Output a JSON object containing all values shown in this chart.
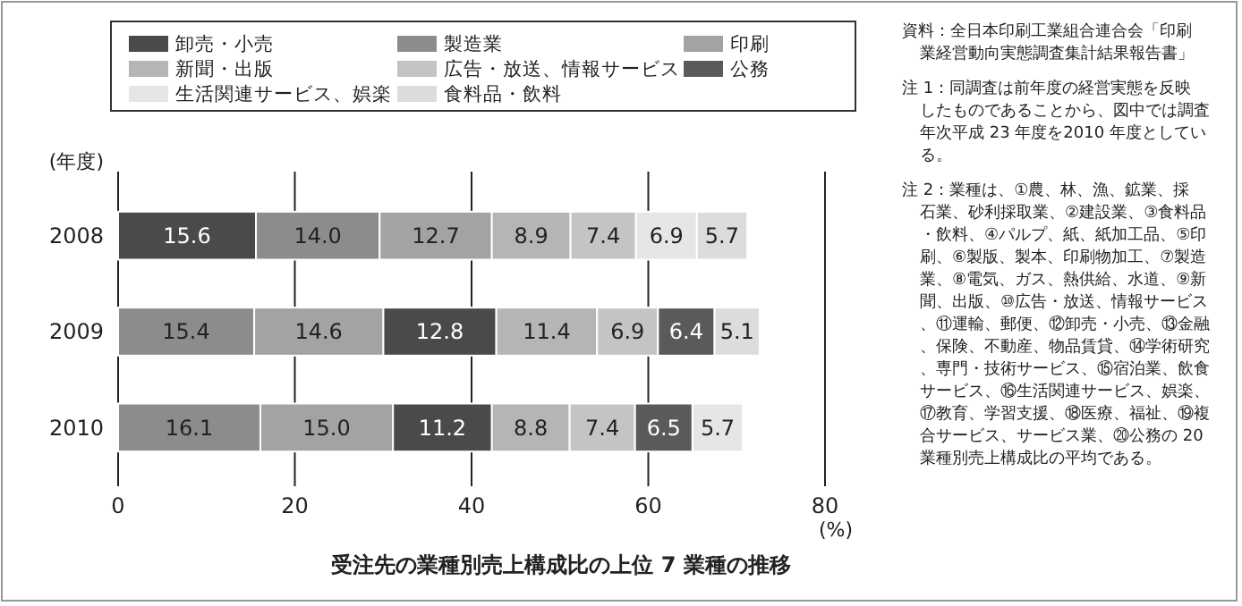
{
  "chart_data": {
    "type": "bar",
    "orientation": "horizontal",
    "title": "受注先の業種別売上構成比の上位 7 業種の推移",
    "xlabel": "(%)",
    "ylabel": "(年度)",
    "categories": [
      "2008",
      "2009",
      "2010"
    ],
    "series": [
      {
        "name": "卸売・小売",
        "color": "#4a4a4a",
        "values": [
          15.6,
          12.8,
          11.2
        ],
        "base": [
          0,
          30.0,
          31.1
        ]
      },
      {
        "name": "製造業",
        "color": "#8c8c8c",
        "values": [
          14.0,
          15.4,
          16.1
        ],
        "value_labels": [
          "14.0",
          "15.4",
          "16.1"
        ],
        "base": [
          15.6,
          0,
          0
        ]
      },
      {
        "name": "印刷",
        "color": "#a3a3a3",
        "values": [
          12.7,
          14.6,
          15.0
        ],
        "value_labels": [
          "12.7",
          "14.6",
          "15.0"
        ],
        "base": [
          29.6,
          15.4,
          16.1
        ]
      },
      {
        "name": "新聞・出版",
        "color": "#b5b5b5",
        "values": [
          8.9,
          11.4,
          8.8
        ],
        "base": [
          42.3,
          42.8,
          42.3
        ]
      },
      {
        "name": "広告・放送、情報サービス",
        "color": "#c4c4c4",
        "values": [
          7.4,
          6.9,
          7.4
        ],
        "base": [
          51.2,
          54.2,
          51.1
        ]
      },
      {
        "name": "公務",
        "color": "#5a5a5a",
        "values": [
          null,
          6.4,
          6.5
        ],
        "base": [
          null,
          61.1,
          58.5
        ]
      },
      {
        "name": "生活関連サービス、娯楽",
        "color": "#e6e6e6",
        "values": [
          6.9,
          null,
          5.7
        ],
        "base": [
          58.6,
          null,
          65.0
        ]
      },
      {
        "name": "食料品・飲料",
        "color": "#dcdcdc",
        "values": [
          5.7,
          5.1,
          null
        ],
        "base": [
          65.5,
          67.5,
          null
        ]
      }
    ],
    "xlim": [
      0,
      80
    ],
    "xticks": [
      0,
      20,
      40,
      60,
      80
    ],
    "grid": "x",
    "legend": "top",
    "data_labels": true,
    "annotations": [
      "資料：全日本印刷工業組合連合会「印刷業経営動向実態調査集計結果報告書」",
      "注 1：同調査は前年度の経営実態を反映したものであることから、図中では調査年次平成 23 年度を2010 年度としている。",
      "注 2：業種は、①農、林、漁、鉱業、採石業、砂利採取業、②建設業、③食料品・飲料、④パルプ、紙、紙加工品、⑤印刷、⑥製版、製本、印刷物加工、⑦製造業、⑧電気、ガス、熱供給、水道、⑨新聞、出版、⑩広告・放送、情報サービス、⑪運輸、郵便、⑫卸売・小売、⑬金融、保険、不動産、物品賃貸、⑭学術研究、専門・技術サービス、⑮宿泊業、飲食サービス、⑯生活関連サービス、娯楽、⑰教育、学習支援、⑱医療、福祉、⑲複合サービス、サービス業、⑳公務の 20 業種別売上構成比の平均である。"
    ]
  }
}
